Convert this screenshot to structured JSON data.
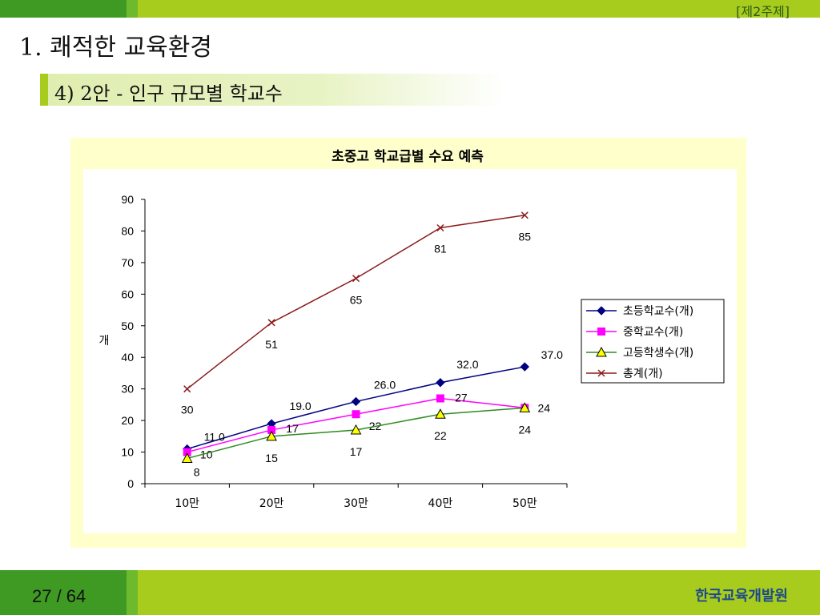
{
  "header": {
    "tag": "[제2주제]"
  },
  "title": "1. 쾌적한 교육환경",
  "subtitle": "4) 2안 - 인구 규모별 학교수",
  "footer": {
    "page": "27  /  64",
    "org": "한국교육개발원"
  },
  "colors": {
    "elementary": "#000080",
    "middle": "#ff00ff",
    "high": "#2e8b1e",
    "total": "#8b1a1a"
  },
  "chart_data": {
    "type": "line",
    "title": "초중고 학교급별 수요 예측",
    "xlabel": "",
    "ylabel": "개",
    "categories": [
      "10만",
      "20만",
      "30만",
      "40만",
      "50만"
    ],
    "ylim": [
      0,
      90
    ],
    "yticks": [
      0,
      10,
      20,
      30,
      40,
      50,
      60,
      70,
      80,
      90
    ],
    "legend_position": "right",
    "series": [
      {
        "name": "초등학교수(개)",
        "values": [
          11.0,
          19.0,
          26.0,
          32.0,
          37.0
        ],
        "labels": [
          "11.0",
          "19.0",
          "26.0",
          "32.0",
          "37.0"
        ],
        "marker": "diamond",
        "color": "#000080"
      },
      {
        "name": "중학교수(개)",
        "values": [
          10,
          17,
          22,
          27,
          24
        ],
        "labels": [
          "10",
          "17",
          "22",
          "27",
          "24"
        ],
        "marker": "square",
        "color": "#ff00ff"
      },
      {
        "name": "고등학생수(개)",
        "values": [
          8,
          15,
          17,
          22,
          24
        ],
        "labels": [
          "8",
          "15",
          "17",
          "22",
          "24"
        ],
        "marker": "triangle",
        "color": "#2e8b1e"
      },
      {
        "name": "총계(개)",
        "values": [
          30,
          51,
          65,
          81,
          85
        ],
        "labels": [
          "30",
          "51",
          "65",
          "81",
          "85"
        ],
        "marker": "x",
        "color": "#8b1a1a"
      }
    ]
  }
}
